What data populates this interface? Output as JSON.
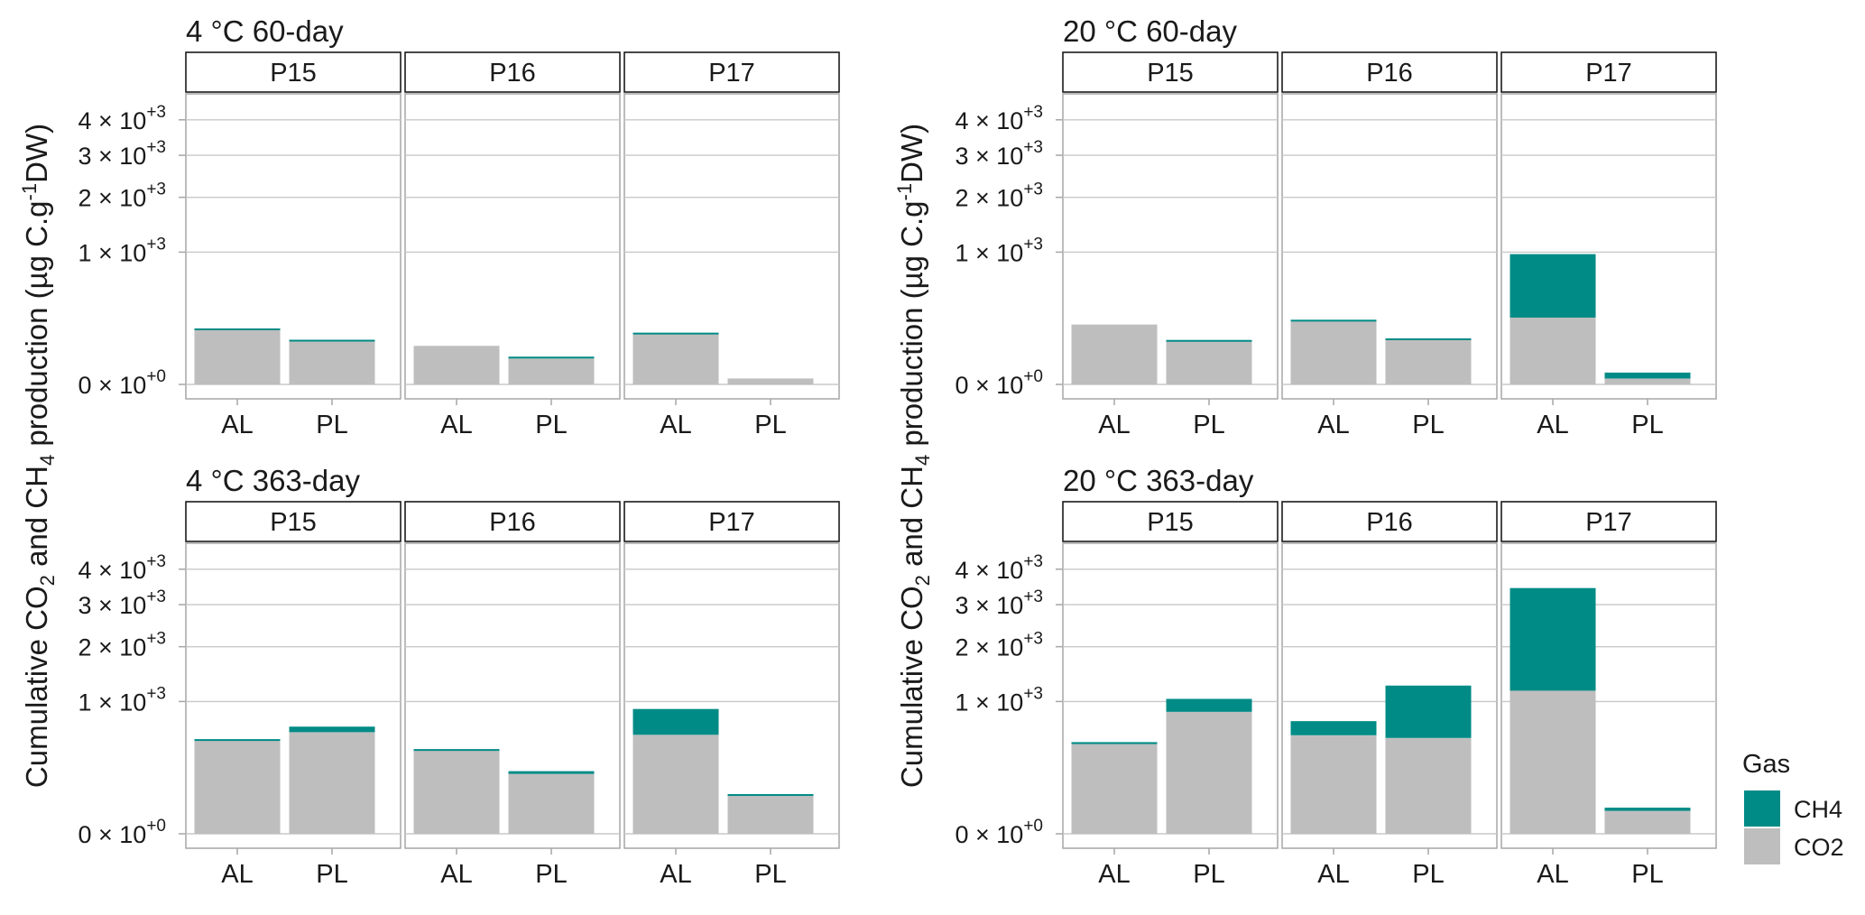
{
  "chart_data": {
    "type": "bar",
    "stacked": true,
    "y_scale": "sqrt",
    "ylim": [
      0,
      4500
    ],
    "y_ticks": [
      {
        "value": 0,
        "mant": "0",
        "exp": "+0"
      },
      {
        "value": 1000,
        "mant": "1",
        "exp": "+3"
      },
      {
        "value": 2000,
        "mant": "2",
        "exp": "+3"
      },
      {
        "value": 3000,
        "mant": "3",
        "exp": "+3"
      },
      {
        "value": 4000,
        "mant": "4",
        "exp": "+3"
      }
    ],
    "tick_times": "×",
    "tick_base": "10",
    "ylabel": {
      "part1": "Cumulative CO",
      "sub1": "2",
      "part2": " and CH",
      "sub2": "4",
      "part3": " production (µg C.g",
      "sup": "-1",
      "part4": "DW)"
    },
    "legend": {
      "title": "Gas",
      "position": "right",
      "items": [
        {
          "label": "CH4",
          "color": "#008B86"
        },
        {
          "label": "CO2",
          "color": "#BEBEBE"
        }
      ]
    },
    "series_colors": {
      "CH4": "#008B86",
      "CO2": "#BEBEBE"
    },
    "grid": true,
    "categories": [
      "AL",
      "PL"
    ],
    "panels": [
      {
        "title": "4 °C 60-day",
        "facets": [
          {
            "name": "P15",
            "bars": [
              {
                "cat": "AL",
                "CO2": 175,
                "CH4": 4
              },
              {
                "cat": "PL",
                "CO2": 110,
                "CH4": 4
              }
            ]
          },
          {
            "name": "P16",
            "bars": [
              {
                "cat": "AL",
                "CO2": 85,
                "CH4": 0
              },
              {
                "cat": "PL",
                "CO2": 40,
                "CH4": 4
              }
            ]
          },
          {
            "name": "P17",
            "bars": [
              {
                "cat": "AL",
                "CO2": 150,
                "CH4": 3
              },
              {
                "cat": "PL",
                "CO2": 2,
                "CH4": 0
              }
            ]
          }
        ]
      },
      {
        "title": "20 °C 60-day",
        "facets": [
          {
            "name": "P15",
            "bars": [
              {
                "cat": "AL",
                "CO2": 205,
                "CH4": 0
              },
              {
                "cat": "PL",
                "CO2": 110,
                "CH4": 3
              }
            ]
          },
          {
            "name": "P16",
            "bars": [
              {
                "cat": "AL",
                "CO2": 235,
                "CH4": 4
              },
              {
                "cat": "PL",
                "CO2": 118,
                "CH4": 3
              }
            ]
          },
          {
            "name": "P17",
            "bars": [
              {
                "cat": "AL",
                "CO2": 255,
                "CH4": 715
              },
              {
                "cat": "PL",
                "CO2": 2,
                "CH4": 6
              }
            ]
          }
        ]
      },
      {
        "title": "4 °C 363-day",
        "facets": [
          {
            "name": "P15",
            "bars": [
              {
                "cat": "AL",
                "CO2": 500,
                "CH4": 12
              },
              {
                "cat": "PL",
                "CO2": 590,
                "CH4": 66
              }
            ]
          },
          {
            "name": "P16",
            "bars": [
              {
                "cat": "AL",
                "CO2": 405,
                "CH4": 5
              },
              {
                "cat": "PL",
                "CO2": 205,
                "CH4": 19
              }
            ]
          },
          {
            "name": "P17",
            "bars": [
              {
                "cat": "AL",
                "CO2": 560,
                "CH4": 330
              },
              {
                "cat": "PL",
                "CO2": 85,
                "CH4": 5
              }
            ]
          }
        ]
      },
      {
        "title": "20 °C 363-day",
        "facets": [
          {
            "name": "P15",
            "bars": [
              {
                "cat": "AL",
                "CO2": 460,
                "CH4": 20
              },
              {
                "cat": "PL",
                "CO2": 850,
                "CH4": 190
              }
            ]
          },
          {
            "name": "P16",
            "bars": [
              {
                "cat": "AL",
                "CO2": 555,
                "CH4": 170
              },
              {
                "cat": "PL",
                "CO2": 525,
                "CH4": 730
              }
            ]
          },
          {
            "name": "P17",
            "bars": [
              {
                "cat": "AL",
                "CO2": 1170,
                "CH4": 2280
              },
              {
                "cat": "PL",
                "CO2": 30,
                "CH4": 9
              }
            ]
          }
        ]
      }
    ]
  }
}
